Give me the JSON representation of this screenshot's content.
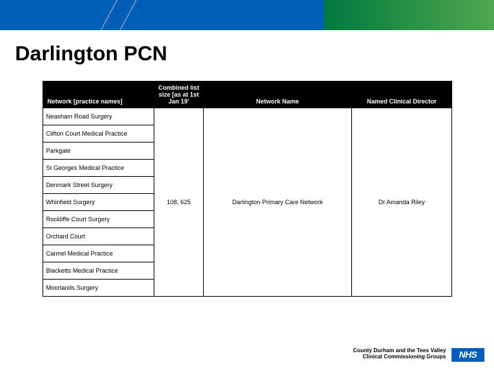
{
  "title": "Darlington PCN",
  "table": {
    "columns": [
      "Network [practice names]",
      "Combined list size [as at 1st Jan 19'",
      "Network Name",
      "Named Clinical Director"
    ],
    "practices": [
      "Neasham Road Surgery",
      "Clifton Court Medical Practice",
      "Parkgate",
      "St Georges Medical Practice",
      "Denmark Street Surgery",
      "Whinfield Surgery",
      "Rockliffe Court Surgery",
      "Orchard Court",
      "Carmel Medical Practice",
      "Blacketts Medical Practice",
      "Moorlands Surgery"
    ],
    "list_size": "108, 625",
    "network_name": "Darlington Primary Care Network",
    "clinical_director": "Dr Amanda Riley"
  },
  "footer_line1": "County Durham and the Tees Valley",
  "footer_line2": "Clinical Commissioning Groups",
  "logo_text": "NHS",
  "colors": {
    "banner_blue": "#005eb8",
    "banner_green_start": "#007a3d",
    "banner_green_end": "#4fa64f"
  }
}
